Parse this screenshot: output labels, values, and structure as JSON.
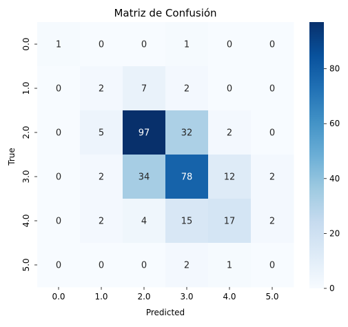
{
  "chart_data": {
    "type": "heatmap",
    "title": "Matriz de Confusión",
    "xlabel": "Predicted",
    "ylabel": "True",
    "x_categories": [
      "0.0",
      "1.0",
      "2.0",
      "3.0",
      "4.0",
      "5.0"
    ],
    "y_categories": [
      "0.0",
      "1.0",
      "2.0",
      "3.0",
      "4.0",
      "5.0"
    ],
    "values": [
      [
        1,
        0,
        0,
        1,
        0,
        0
      ],
      [
        0,
        2,
        7,
        2,
        0,
        0
      ],
      [
        0,
        5,
        97,
        32,
        2,
        0
      ],
      [
        0,
        2,
        34,
        78,
        12,
        2
      ],
      [
        0,
        2,
        4,
        15,
        17,
        2
      ],
      [
        0,
        0,
        0,
        2,
        1,
        0
      ]
    ],
    "colormap": "Blues",
    "vmin": 0,
    "vmax": 97,
    "colorbar_ticks": [
      0,
      20,
      40,
      60,
      80
    ],
    "colors": {
      "low": "#f7fbff",
      "high": "#08306b"
    }
  }
}
